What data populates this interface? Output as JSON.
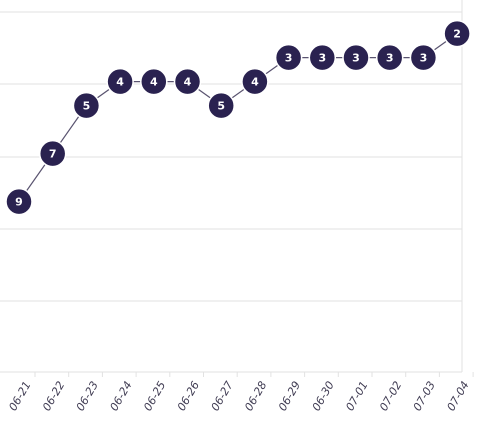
{
  "chart_data": {
    "type": "line",
    "title": "",
    "xlabel": "",
    "ylabel": "",
    "x": [
      "06-21",
      "06-22",
      "06-23",
      "06-24",
      "06-25",
      "06-26",
      "06-27",
      "06-28",
      "06-29",
      "06-30",
      "07-01",
      "07-02",
      "07-03",
      "07-04"
    ],
    "series": [
      {
        "values": [
          9,
          7,
          5,
          4,
          4,
          4,
          5,
          4,
          3,
          3,
          3,
          3,
          3,
          2
        ]
      }
    ],
    "y_axis": {
      "reversed": true,
      "tick_labels_shown": false
    },
    "grid": "horizontal",
    "legend": "none",
    "data_labels": "inside-markers",
    "colors": {
      "marker": "#2a2250",
      "line": "#5a5470",
      "grid": "#e2e2e2",
      "marker_text": "#ffffff",
      "tick_text": "#3f3b52"
    }
  }
}
